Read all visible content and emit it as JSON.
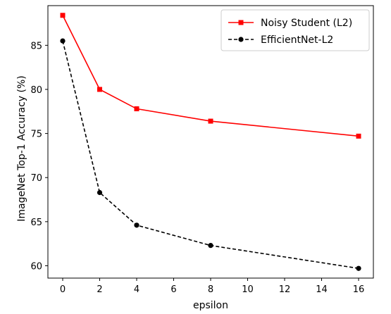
{
  "chart_data": {
    "type": "line",
    "xlabel": "epsilon",
    "ylabel": "ImageNet Top-1 Accuracy (%)",
    "xlim": [
      -0.8,
      16.8
    ],
    "ylim": [
      58.6,
      89.5
    ],
    "xticks": [
      0,
      2,
      4,
      6,
      8,
      10,
      12,
      14,
      16
    ],
    "yticks": [
      60,
      65,
      70,
      75,
      80,
      85
    ],
    "grid": false,
    "legend_position": "top-right",
    "series": [
      {
        "name": "Noisy Student (L2)",
        "color": "#ff0000",
        "marker": "square",
        "line_style": "solid",
        "x": [
          0,
          2,
          4,
          8,
          16
        ],
        "y": [
          88.4,
          80.0,
          77.8,
          76.4,
          74.7
        ]
      },
      {
        "name": "EfficientNet-L2",
        "color": "#000000",
        "marker": "circle",
        "line_style": "dashed",
        "x": [
          0,
          2,
          4,
          8,
          16
        ],
        "y": [
          85.5,
          68.3,
          64.6,
          62.3,
          59.7
        ]
      }
    ]
  }
}
